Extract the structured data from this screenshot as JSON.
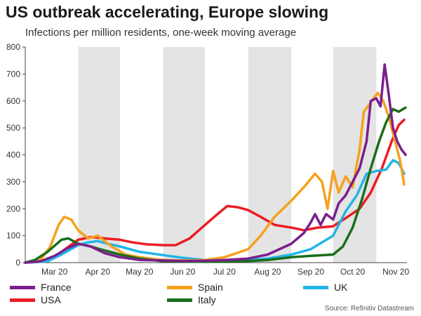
{
  "title": "US outbreak accelerating, Europe slowing",
  "subtitle": "Infections per million residents, one-week moving average",
  "source": "Source: Refinitiv Datastream",
  "chart_data": {
    "type": "line",
    "title": "US outbreak accelerating, Europe slowing",
    "subtitle": "Infections per million residents, one-week moving average",
    "xlabel": "",
    "ylabel": "",
    "ylim": [
      0,
      800
    ],
    "yticks": [
      0,
      100,
      200,
      300,
      400,
      500,
      600,
      700,
      800
    ],
    "xlim": [
      "2020-02-23",
      "2020-11-23"
    ],
    "x_tick_labels": [
      {
        "label": "Mar 20",
        "date": "2020-03-15"
      },
      {
        "label": "Apr 20",
        "date": "2020-04-15"
      },
      {
        "label": "May 20",
        "date": "2020-05-15"
      },
      {
        "label": "Jun 20",
        "date": "2020-06-15"
      },
      {
        "label": "Jul 20",
        "date": "2020-07-15"
      },
      {
        "label": "Aug 20",
        "date": "2020-08-15"
      },
      {
        "label": "Sep 20",
        "date": "2020-09-15"
      },
      {
        "label": "Oct 20",
        "date": "2020-10-15"
      },
      {
        "label": "Nov 20",
        "date": "2020-11-15"
      }
    ],
    "shaded_months": [
      [
        "2020-04-01",
        "2020-05-01"
      ],
      [
        "2020-06-01",
        "2020-07-01"
      ],
      [
        "2020-08-01",
        "2020-09-01"
      ],
      [
        "2020-10-01",
        "2020-11-01"
      ]
    ],
    "legend_position": "bottom",
    "series": [
      {
        "name": "France",
        "color": "#7b1f8e",
        "points": [
          [
            "2020-02-23",
            0
          ],
          [
            "2020-03-05",
            5
          ],
          [
            "2020-03-15",
            25
          ],
          [
            "2020-03-25",
            55
          ],
          [
            "2020-04-01",
            70
          ],
          [
            "2020-04-10",
            60
          ],
          [
            "2020-04-20",
            35
          ],
          [
            "2020-05-01",
            20
          ],
          [
            "2020-05-15",
            10
          ],
          [
            "2020-06-01",
            8
          ],
          [
            "2020-06-15",
            6
          ],
          [
            "2020-07-01",
            7
          ],
          [
            "2020-07-15",
            10
          ],
          [
            "2020-08-01",
            15
          ],
          [
            "2020-08-15",
            30
          ],
          [
            "2020-09-01",
            70
          ],
          [
            "2020-09-10",
            110
          ],
          [
            "2020-09-15",
            150
          ],
          [
            "2020-09-18",
            180
          ],
          [
            "2020-09-22",
            140
          ],
          [
            "2020-09-26",
            180
          ],
          [
            "2020-10-01",
            160
          ],
          [
            "2020-10-05",
            220
          ],
          [
            "2020-10-10",
            250
          ],
          [
            "2020-10-15",
            300
          ],
          [
            "2020-10-20",
            350
          ],
          [
            "2020-10-25",
            450
          ],
          [
            "2020-10-28",
            600
          ],
          [
            "2020-11-01",
            610
          ],
          [
            "2020-11-04",
            580
          ],
          [
            "2020-11-07",
            735
          ],
          [
            "2020-11-10",
            620
          ],
          [
            "2020-11-13",
            500
          ],
          [
            "2020-11-16",
            450
          ],
          [
            "2020-11-19",
            420
          ],
          [
            "2020-11-22",
            400
          ]
        ]
      },
      {
        "name": "Spain",
        "color": "#f5a11c",
        "points": [
          [
            "2020-02-23",
            0
          ],
          [
            "2020-03-05",
            10
          ],
          [
            "2020-03-12",
            60
          ],
          [
            "2020-03-18",
            140
          ],
          [
            "2020-03-22",
            170
          ],
          [
            "2020-03-27",
            160
          ],
          [
            "2020-04-01",
            120
          ],
          [
            "2020-04-08",
            90
          ],
          [
            "2020-04-15",
            100
          ],
          [
            "2020-04-25",
            60
          ],
          [
            "2020-05-05",
            30
          ],
          [
            "2020-05-15",
            20
          ],
          [
            "2020-06-01",
            10
          ],
          [
            "2020-06-15",
            8
          ],
          [
            "2020-07-01",
            10
          ],
          [
            "2020-07-15",
            20
          ],
          [
            "2020-08-01",
            50
          ],
          [
            "2020-08-10",
            100
          ],
          [
            "2020-08-20",
            170
          ],
          [
            "2020-09-01",
            230
          ],
          [
            "2020-09-10",
            280
          ],
          [
            "2020-09-18",
            330
          ],
          [
            "2020-09-23",
            300
          ],
          [
            "2020-09-27",
            200
          ],
          [
            "2020-10-01",
            340
          ],
          [
            "2020-10-05",
            260
          ],
          [
            "2020-10-10",
            320
          ],
          [
            "2020-10-15",
            280
          ],
          [
            "2020-10-20",
            420
          ],
          [
            "2020-10-23",
            560
          ],
          [
            "2020-10-26",
            580
          ],
          [
            "2020-10-30",
            610
          ],
          [
            "2020-11-02",
            630
          ],
          [
            "2020-11-06",
            600
          ],
          [
            "2020-11-10",
            540
          ],
          [
            "2020-11-14",
            460
          ],
          [
            "2020-11-18",
            380
          ],
          [
            "2020-11-21",
            290
          ]
        ]
      },
      {
        "name": "UK",
        "color": "#21b5e8",
        "points": [
          [
            "2020-02-23",
            0
          ],
          [
            "2020-03-10",
            5
          ],
          [
            "2020-03-20",
            30
          ],
          [
            "2020-04-01",
            65
          ],
          [
            "2020-04-08",
            75
          ],
          [
            "2020-04-15",
            80
          ],
          [
            "2020-04-22",
            70
          ],
          [
            "2020-05-01",
            60
          ],
          [
            "2020-05-15",
            40
          ],
          [
            "2020-06-01",
            28
          ],
          [
            "2020-06-15",
            18
          ],
          [
            "2020-07-01",
            10
          ],
          [
            "2020-07-15",
            8
          ],
          [
            "2020-08-01",
            10
          ],
          [
            "2020-08-15",
            15
          ],
          [
            "2020-09-01",
            30
          ],
          [
            "2020-09-15",
            50
          ],
          [
            "2020-10-01",
            100
          ],
          [
            "2020-10-10",
            190
          ],
          [
            "2020-10-18",
            250
          ],
          [
            "2020-10-25",
            330
          ],
          [
            "2020-11-01",
            340
          ],
          [
            "2020-11-08",
            345
          ],
          [
            "2020-11-13",
            380
          ],
          [
            "2020-11-17",
            370
          ],
          [
            "2020-11-21",
            330
          ]
        ]
      },
      {
        "name": "USA",
        "color": "#ec1c24",
        "points": [
          [
            "2020-02-23",
            0
          ],
          [
            "2020-03-10",
            5
          ],
          [
            "2020-03-20",
            40
          ],
          [
            "2020-04-01",
            85
          ],
          [
            "2020-04-10",
            95
          ],
          [
            "2020-04-20",
            90
          ],
          [
            "2020-05-01",
            85
          ],
          [
            "2020-05-10",
            75
          ],
          [
            "2020-05-20",
            68
          ],
          [
            "2020-06-01",
            65
          ],
          [
            "2020-06-10",
            65
          ],
          [
            "2020-06-20",
            90
          ],
          [
            "2020-07-01",
            140
          ],
          [
            "2020-07-10",
            180
          ],
          [
            "2020-07-17",
            210
          ],
          [
            "2020-07-25",
            205
          ],
          [
            "2020-08-01",
            195
          ],
          [
            "2020-08-10",
            170
          ],
          [
            "2020-08-20",
            140
          ],
          [
            "2020-09-01",
            130
          ],
          [
            "2020-09-10",
            120
          ],
          [
            "2020-09-20",
            130
          ],
          [
            "2020-10-01",
            135
          ],
          [
            "2020-10-10",
            165
          ],
          [
            "2020-10-20",
            200
          ],
          [
            "2020-10-28",
            260
          ],
          [
            "2020-11-05",
            350
          ],
          [
            "2020-11-12",
            450
          ],
          [
            "2020-11-17",
            510
          ],
          [
            "2020-11-21",
            530
          ]
        ]
      },
      {
        "name": "Italy",
        "color": "#1a6d1a",
        "points": [
          [
            "2020-02-23",
            0
          ],
          [
            "2020-03-01",
            10
          ],
          [
            "2020-03-10",
            40
          ],
          [
            "2020-03-20",
            85
          ],
          [
            "2020-03-25",
            90
          ],
          [
            "2020-04-01",
            70
          ],
          [
            "2020-04-10",
            60
          ],
          [
            "2020-04-20",
            45
          ],
          [
            "2020-05-01",
            30
          ],
          [
            "2020-05-15",
            15
          ],
          [
            "2020-06-01",
            5
          ],
          [
            "2020-06-15",
            4
          ],
          [
            "2020-07-01",
            3
          ],
          [
            "2020-07-15",
            4
          ],
          [
            "2020-08-01",
            6
          ],
          [
            "2020-08-15",
            10
          ],
          [
            "2020-09-01",
            20
          ],
          [
            "2020-09-15",
            25
          ],
          [
            "2020-10-01",
            30
          ],
          [
            "2020-10-08",
            60
          ],
          [
            "2020-10-15",
            130
          ],
          [
            "2020-10-22",
            240
          ],
          [
            "2020-10-28",
            350
          ],
          [
            "2020-11-03",
            450
          ],
          [
            "2020-11-08",
            520
          ],
          [
            "2020-11-13",
            570
          ],
          [
            "2020-11-17",
            560
          ],
          [
            "2020-11-22",
            575
          ]
        ]
      }
    ]
  }
}
